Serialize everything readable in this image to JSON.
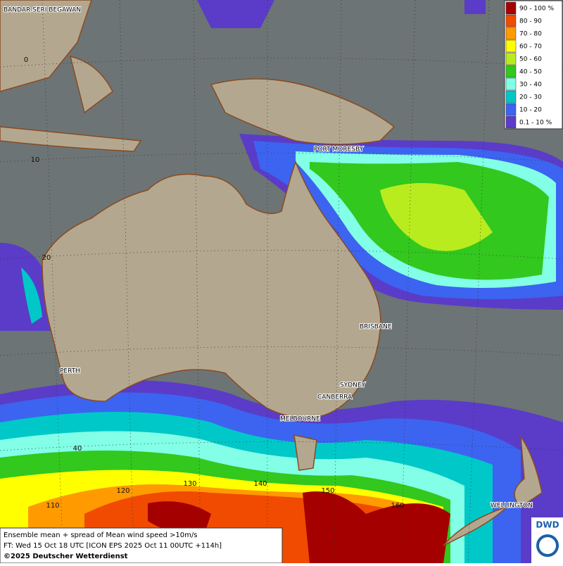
{
  "map": {
    "cities": [
      "BANDAR SERI BEGAWAN",
      "PORT MORESBY",
      "BRISBANE",
      "SYDNEY",
      "CANBERRA",
      "MELBOURNE",
      "PERTH",
      "WELLINGTON"
    ],
    "grid_labels": [
      "0",
      "10",
      "20",
      "40",
      "110",
      "120",
      "130",
      "140",
      "150",
      "160"
    ],
    "legend": [
      {
        "label": "90 - 100 %",
        "color": "#a50000"
      },
      {
        "label": "80 - 90",
        "color": "#f04b00"
      },
      {
        "label": "70 - 80",
        "color": "#ff9a00"
      },
      {
        "label": "60 - 70",
        "color": "#ffff00"
      },
      {
        "label": "50 - 60",
        "color": "#b9ec1e"
      },
      {
        "label": "40 - 50",
        "color": "#32c81e"
      },
      {
        "label": "30 - 40",
        "color": "#82ffe6"
      },
      {
        "label": "20 - 30",
        "color": "#00c8c8"
      },
      {
        "label": "10 - 20",
        "color": "#3c64f0"
      },
      {
        "label": "0.1 - 10 %",
        "color": "#5a3cc8"
      }
    ],
    "footer": [
      "Ensemble mean + spread of Mean wind speed >10m/s",
      "FT: Wed 15 Oct 18 UTC [ICON EPS 2025 Oct 11 00UTC +114h]",
      "©2025 Deutscher Wetterdienst"
    ],
    "logo": "DWD"
  }
}
